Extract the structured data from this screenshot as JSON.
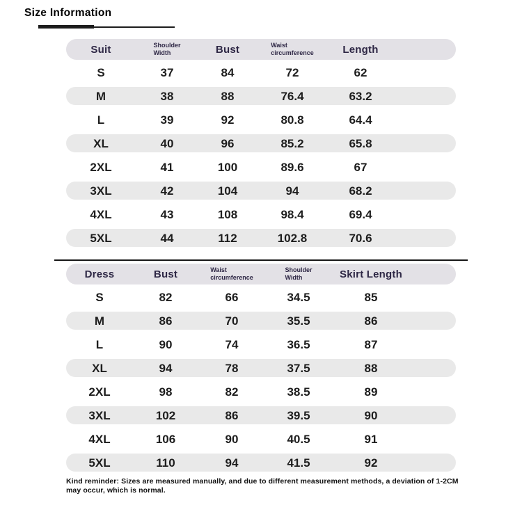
{
  "title": "Size Information",
  "colors": {
    "header_pill_bg": "#e3e1e6",
    "stripe_bg": "#e9e9e9",
    "header_text": "#2e2745",
    "body_text": "#1e1e1e",
    "accent_bar": "#1c1c1c"
  },
  "tables": [
    {
      "name": "suit",
      "headers": [
        {
          "label": "Suit",
          "small": false
        },
        {
          "label": "Shoulder\nWidth",
          "small": true
        },
        {
          "label": "Bust",
          "small": false
        },
        {
          "label": "Waist\ncircumference",
          "small": true
        },
        {
          "label": "Length",
          "small": false
        }
      ],
      "rows": [
        [
          "S",
          "37",
          "84",
          "72",
          "62"
        ],
        [
          "M",
          "38",
          "88",
          "76.4",
          "63.2"
        ],
        [
          "L",
          "39",
          "92",
          "80.8",
          "64.4"
        ],
        [
          "XL",
          "40",
          "96",
          "85.2",
          "65.8"
        ],
        [
          "2XL",
          "41",
          "100",
          "89.6",
          "67"
        ],
        [
          "3XL",
          "42",
          "104",
          "94",
          "68.2"
        ],
        [
          "4XL",
          "43",
          "108",
          "98.4",
          "69.4"
        ],
        [
          "5XL",
          "44",
          "112",
          "102.8",
          "70.6"
        ]
      ]
    },
    {
      "name": "dress",
      "headers": [
        {
          "label": "Dress",
          "small": false
        },
        {
          "label": "Bust",
          "small": false
        },
        {
          "label": "Waist\ncircumference",
          "small": true
        },
        {
          "label": "Shoulder\nWidth",
          "small": true
        },
        {
          "label": "Skirt Length",
          "small": false
        }
      ],
      "rows": [
        [
          "S",
          "82",
          "66",
          "34.5",
          "85"
        ],
        [
          "M",
          "86",
          "70",
          "35.5",
          "86"
        ],
        [
          "L",
          "90",
          "74",
          "36.5",
          "87"
        ],
        [
          "XL",
          "94",
          "78",
          "37.5",
          "88"
        ],
        [
          "2XL",
          "98",
          "82",
          "38.5",
          "89"
        ],
        [
          "3XL",
          "102",
          "86",
          "39.5",
          "90"
        ],
        [
          "4XL",
          "106",
          "90",
          "40.5",
          "91"
        ],
        [
          "5XL",
          "110",
          "94",
          "41.5",
          "92"
        ]
      ]
    }
  ],
  "footer_note": "Kind reminder: Sizes are measured manually, and due to different measurement methods, a deviation of 1-2CM may occur, which is normal."
}
